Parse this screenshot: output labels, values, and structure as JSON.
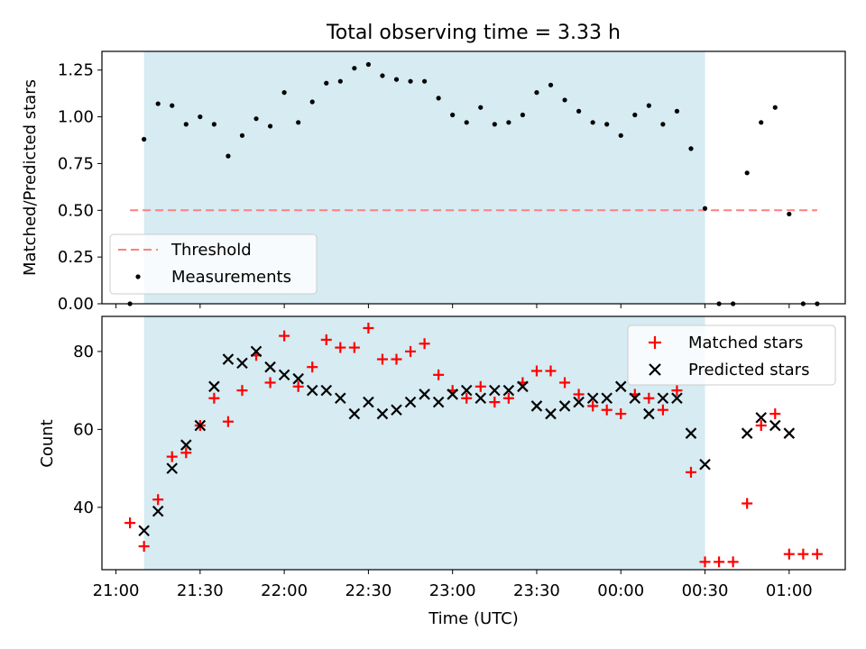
{
  "title": "Total observing time = 3.33 h",
  "chart_data": [
    {
      "type": "scatter",
      "panel": "top",
      "ylabel": "Matched/Predicted stars",
      "xlabel": "",
      "ylim": [
        0.0,
        1.35
      ],
      "yticks": [
        0.0,
        0.25,
        0.5,
        0.75,
        1.0,
        1.25
      ],
      "ytick_labels": [
        "0.00",
        "0.25",
        "0.50",
        "0.75",
        "1.00",
        "1.25"
      ],
      "shaded_interval": [
        "21:10",
        "00:30"
      ],
      "threshold": {
        "name": "Threshold",
        "value": 0.5,
        "x_range": [
          "21:05",
          "01:10"
        ],
        "color": "#ff7f7f",
        "style": "dashed"
      },
      "series": [
        {
          "name": "Measurements",
          "color": "#000000",
          "marker": "dot",
          "x": [
            "21:05",
            "21:10",
            "21:15",
            "21:20",
            "21:25",
            "21:30",
            "21:35",
            "21:40",
            "21:45",
            "21:50",
            "21:55",
            "22:00",
            "22:05",
            "22:10",
            "22:15",
            "22:20",
            "22:25",
            "22:30",
            "22:35",
            "22:40",
            "22:45",
            "22:50",
            "22:55",
            "23:00",
            "23:05",
            "23:10",
            "23:15",
            "23:20",
            "23:25",
            "23:30",
            "23:35",
            "23:40",
            "23:45",
            "23:50",
            "23:55",
            "00:00",
            "00:05",
            "00:10",
            "00:15",
            "00:20",
            "00:25",
            "00:30",
            "00:35",
            "00:40",
            "00:45",
            "00:50",
            "00:55",
            "01:00",
            "01:05",
            "01:10"
          ],
          "y": [
            0.0,
            0.88,
            1.07,
            1.06,
            0.96,
            1.0,
            0.96,
            0.79,
            0.9,
            0.99,
            0.95,
            1.13,
            0.97,
            1.08,
            1.18,
            1.19,
            1.26,
            1.28,
            1.22,
            1.2,
            1.19,
            1.19,
            1.1,
            1.01,
            0.97,
            1.05,
            0.96,
            0.97,
            1.01,
            1.13,
            1.17,
            1.09,
            1.03,
            0.97,
            0.96,
            0.9,
            1.01,
            1.06,
            0.96,
            1.03,
            0.83,
            0.51,
            0.0,
            0.0,
            0.7,
            0.97,
            1.05,
            0.48,
            0.0,
            0.0
          ]
        }
      ],
      "legend": {
        "placement": "lower-left",
        "entries": [
          "Threshold",
          "Measurements"
        ]
      }
    },
    {
      "type": "scatter",
      "panel": "bottom",
      "ylabel": "Count",
      "xlabel": "Time (UTC)",
      "ylim": [
        24,
        89
      ],
      "yticks": [
        40,
        60,
        80
      ],
      "xlim": [
        "20:55",
        "01:20"
      ],
      "xticks": [
        "21:00",
        "21:30",
        "22:00",
        "22:30",
        "23:00",
        "23:30",
        "00:00",
        "00:30",
        "01:00"
      ],
      "shaded_interval": [
        "21:10",
        "00:30"
      ],
      "series": [
        {
          "name": "Matched stars",
          "color": "#ff0000",
          "marker": "plus",
          "x": [
            "21:05",
            "21:10",
            "21:15",
            "21:20",
            "21:25",
            "21:30",
            "21:35",
            "21:40",
            "21:45",
            "21:50",
            "21:55",
            "22:00",
            "22:05",
            "22:10",
            "22:15",
            "22:20",
            "22:25",
            "22:30",
            "22:35",
            "22:40",
            "22:45",
            "22:50",
            "22:55",
            "23:00",
            "23:05",
            "23:10",
            "23:15",
            "23:20",
            "23:25",
            "23:30",
            "23:35",
            "23:40",
            "23:45",
            "23:50",
            "23:55",
            "00:00",
            "00:05",
            "00:10",
            "00:15",
            "00:20",
            "00:25",
            "00:30",
            "00:35",
            "00:40",
            "00:45",
            "00:50",
            "00:55",
            "01:00",
            "01:05",
            "01:10"
          ],
          "y": [
            36,
            30,
            42,
            53,
            54,
            61,
            68,
            62,
            70,
            79,
            72,
            84,
            71,
            76,
            83,
            81,
            81,
            86,
            78,
            78,
            80,
            82,
            74,
            70,
            68,
            71,
            67,
            68,
            72,
            75,
            75,
            72,
            69,
            66,
            65,
            64,
            69,
            68,
            65,
            70,
            49,
            26,
            26,
            26,
            41,
            61,
            64,
            28,
            28,
            28
          ]
        },
        {
          "name": "Predicted stars",
          "color": "#000000",
          "marker": "cross",
          "x": [
            "21:10",
            "21:15",
            "21:20",
            "21:25",
            "21:30",
            "21:35",
            "21:40",
            "21:45",
            "21:50",
            "21:55",
            "22:00",
            "22:05",
            "22:10",
            "22:15",
            "22:20",
            "22:25",
            "22:30",
            "22:35",
            "22:40",
            "22:45",
            "22:50",
            "22:55",
            "23:00",
            "23:05",
            "23:10",
            "23:15",
            "23:20",
            "23:25",
            "23:30",
            "23:35",
            "23:40",
            "23:45",
            "23:50",
            "23:55",
            "00:00",
            "00:05",
            "00:10",
            "00:15",
            "00:20",
            "00:25",
            "00:30",
            "00:45",
            "00:50",
            "00:55",
            "01:00"
          ],
          "y": [
            34,
            39,
            50,
            56,
            61,
            71,
            78,
            77,
            80,
            76,
            74,
            73,
            70,
            70,
            68,
            64,
            67,
            64,
            65,
            67,
            69,
            67,
            69,
            70,
            68,
            70,
            70,
            71,
            66,
            64,
            66,
            67,
            68,
            68,
            71,
            68,
            64,
            68,
            68,
            59,
            51,
            59,
            63,
            61,
            59
          ]
        }
      ],
      "legend": {
        "placement": "upper-right",
        "entries": [
          "Matched stars",
          "Predicted stars"
        ]
      }
    }
  ]
}
